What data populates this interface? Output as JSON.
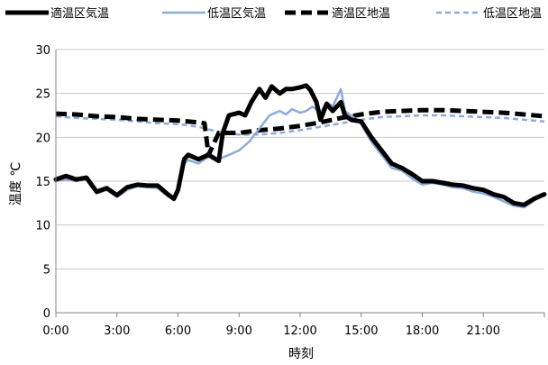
{
  "chart_data": {
    "type": "line",
    "xlabel": "時刻",
    "ylabel": "温度 ℃",
    "ylim": [
      0,
      30
    ],
    "yticks": [
      "0",
      "5",
      "10",
      "15",
      "20",
      "25",
      "30"
    ],
    "xlim": [
      0,
      24
    ],
    "xticks": [
      {
        "hour": 0,
        "label": "0:00"
      },
      {
        "hour": 3,
        "label": "3:00"
      },
      {
        "hour": 6,
        "label": "6:00"
      },
      {
        "hour": 9,
        "label": "9:00"
      },
      {
        "hour": 12,
        "label": "12:00"
      },
      {
        "hour": 15,
        "label": "15:00"
      },
      {
        "hour": 18,
        "label": "18:00"
      },
      {
        "hour": 21,
        "label": "21:00"
      }
    ],
    "grid": "horizontal",
    "legend_position": "top",
    "series": [
      {
        "name": "適温区気温",
        "color": "#000000",
        "style": "solid",
        "weight": "heavy",
        "x": [
          0,
          0.5,
          1,
          1.5,
          2,
          2.5,
          3,
          3.5,
          4,
          4.5,
          5,
          5.5,
          5.8,
          6,
          6.3,
          6.5,
          7,
          7.5,
          8,
          8.2,
          8.5,
          9,
          9.3,
          9.6,
          10,
          10.3,
          10.6,
          11,
          11.3,
          11.6,
          12,
          12.3,
          12.5,
          12.8,
          13,
          13.3,
          13.6,
          14,
          14.2,
          14.5,
          15,
          15.5,
          16,
          16.5,
          17,
          17.5,
          18,
          18.5,
          19,
          19.5,
          20,
          20.5,
          21,
          21.5,
          22,
          22.5,
          23,
          23.5,
          24
        ],
        "y": [
          15.2,
          15.6,
          15.2,
          15.4,
          13.8,
          14.2,
          13.4,
          14.3,
          14.6,
          14.5,
          14.5,
          13.5,
          13.0,
          14.0,
          17.5,
          18.0,
          17.5,
          18.0,
          17.3,
          20.5,
          22.5,
          22.8,
          22.5,
          24.0,
          25.5,
          24.5,
          25.8,
          25.0,
          25.5,
          25.5,
          25.7,
          25.9,
          25.4,
          24.0,
          22.0,
          23.8,
          23.0,
          24.0,
          22.5,
          22.0,
          21.8,
          20.0,
          18.5,
          17.0,
          16.5,
          15.8,
          15.0,
          15.0,
          14.8,
          14.6,
          14.5,
          14.2,
          14.0,
          13.5,
          13.2,
          12.5,
          12.3,
          13.0,
          13.5
        ]
      },
      {
        "name": "低温区気温",
        "color": "#8eaadb",
        "style": "solid",
        "weight": "light",
        "x": [
          0,
          0.5,
          1,
          1.5,
          2,
          2.5,
          3,
          3.5,
          4,
          4.5,
          5,
          5.5,
          5.8,
          6,
          6.3,
          6.5,
          7,
          7.5,
          8,
          8.5,
          9,
          9.5,
          10,
          10.5,
          11,
          11.3,
          11.6,
          12,
          12.3,
          12.6,
          13,
          13.3,
          13.6,
          14,
          14.2,
          14.5,
          15,
          15.5,
          16,
          16.5,
          17,
          17.5,
          18,
          18.5,
          19,
          19.5,
          20,
          20.5,
          21,
          21.5,
          22,
          22.5,
          23,
          23.5,
          24
        ],
        "y": [
          15.0,
          15.2,
          15.0,
          15.2,
          13.6,
          14.0,
          13.2,
          14.0,
          14.4,
          14.3,
          14.2,
          13.3,
          12.8,
          13.8,
          17.0,
          17.4,
          17.0,
          17.8,
          17.5,
          18.0,
          18.5,
          19.5,
          21.0,
          22.5,
          23.0,
          22.6,
          23.2,
          22.8,
          23.0,
          23.5,
          22.8,
          24.0,
          23.5,
          25.5,
          23.0,
          22.5,
          21.5,
          19.5,
          18.0,
          16.5,
          16.2,
          15.3,
          14.6,
          14.8,
          14.6,
          14.3,
          14.2,
          13.8,
          13.6,
          13.2,
          12.7,
          12.2,
          12.0,
          12.8,
          13.5
        ]
      },
      {
        "name": "適温区地温",
        "color": "#000000",
        "style": "dashed",
        "weight": "heavy",
        "x": [
          0,
          1,
          2,
          3,
          4,
          5,
          6,
          7,
          7.3,
          7.5,
          8,
          9,
          10,
          11,
          12,
          13,
          14,
          15,
          16,
          17,
          18,
          19,
          20,
          21,
          22,
          23,
          24
        ],
        "y": [
          22.7,
          22.6,
          22.4,
          22.3,
          22.1,
          22.0,
          21.9,
          21.7,
          21.6,
          18.0,
          20.5,
          20.5,
          20.8,
          21.0,
          21.3,
          21.7,
          22.2,
          22.6,
          22.9,
          23.0,
          23.1,
          23.1,
          23.0,
          22.9,
          22.8,
          22.6,
          22.4
        ]
      },
      {
        "name": "低温区地温",
        "color": "#8eaadb",
        "style": "dashed",
        "weight": "light",
        "x": [
          0,
          1,
          2,
          3,
          4,
          5,
          6,
          7,
          8,
          9,
          10,
          11,
          12,
          13,
          14,
          15,
          16,
          17,
          18,
          19,
          20,
          21,
          22,
          23,
          24
        ],
        "y": [
          22.4,
          22.2,
          22.1,
          22.0,
          21.8,
          21.6,
          21.5,
          21.2,
          20.6,
          20.3,
          20.3,
          20.5,
          20.8,
          21.2,
          21.6,
          22.0,
          22.3,
          22.4,
          22.5,
          22.5,
          22.4,
          22.3,
          22.2,
          22.0,
          21.8
        ]
      }
    ]
  }
}
